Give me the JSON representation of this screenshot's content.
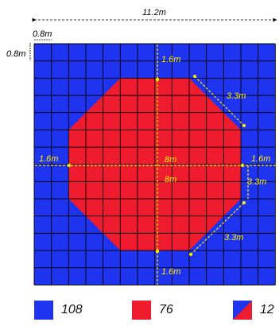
{
  "colors": {
    "blue": "#1f34ee",
    "red": "#ee1c2e",
    "grid": "#000000",
    "dimension_line": "#ffee00"
  },
  "dimensions": {
    "total_width": "11.2m",
    "tile_width": "0.8m",
    "tile_height": "0.8m",
    "top_gap": "1.6m",
    "bottom_gap": "1.6m",
    "left_gap": "1.6m",
    "right_gap": "1.6m",
    "horizontal_span": "8m",
    "vertical_span": "8m",
    "side_right": "3.3m",
    "diagonal_top_right": "3.3m",
    "diagonal_bottom_right": "3.3m"
  },
  "legend": [
    {
      "swatch": "blue",
      "count": "108"
    },
    {
      "swatch": "red",
      "count": "76"
    },
    {
      "swatch": "split",
      "count": "12"
    }
  ]
}
